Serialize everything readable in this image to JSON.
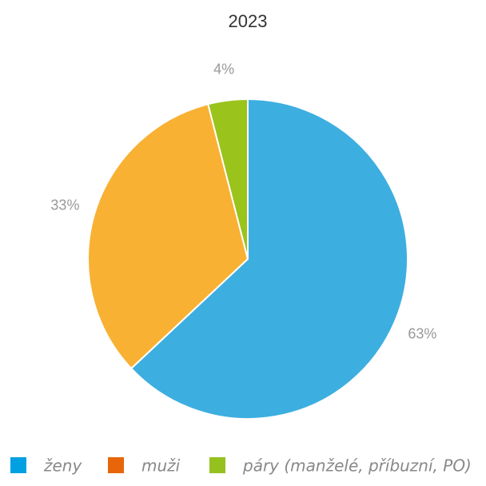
{
  "chart_data": {
    "type": "pie",
    "title": "2023",
    "categories": [
      "ženy",
      "muži",
      "páry (manželé, příbuzní, PO)"
    ],
    "values": [
      63,
      33,
      4
    ],
    "value_labels": [
      "63%",
      "33%",
      "4%"
    ],
    "colors": [
      "#3daee0",
      "#f8b133",
      "#9ac31c"
    ],
    "legend_colors": [
      "#00a0e3",
      "#e8650a",
      "#95c11f"
    ]
  }
}
